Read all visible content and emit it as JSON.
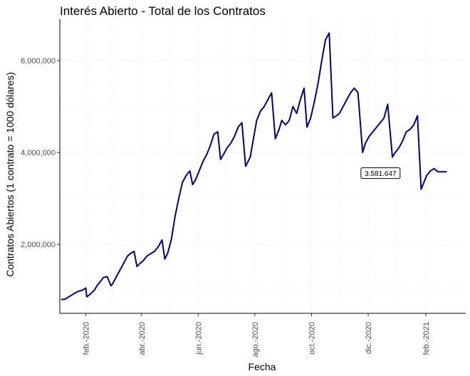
{
  "chart_data": {
    "type": "line",
    "title": "Interés Abierto - Total de los Contratos",
    "xlabel": "Fecha",
    "ylabel": "Contratos Abiertos (1 contrato = 1000 dólares)",
    "x_tick_labels": [
      "feb.-2020",
      "abr.-2020",
      "jun.-2020",
      "ago.-2020",
      "oct.-2020",
      "dic.-2020",
      "feb.-2021"
    ],
    "x_tick_dates": [
      "2020-02-01",
      "2020-04-01",
      "2020-06-01",
      "2020-08-01",
      "2020-10-01",
      "2020-12-01",
      "2021-02-01"
    ],
    "y_tick_labels": [
      "2,000,000",
      "4,000,000",
      "6,000,000"
    ],
    "y_ticks": [
      2000000,
      4000000,
      6000000
    ],
    "xlim": [
      "2020-01-04",
      "2021-03-16"
    ],
    "ylim": [
      500000,
      6900000
    ],
    "grid": "dotted",
    "line_color": "#000080",
    "series": [
      {
        "x": [
          "2020-01-06",
          "2020-01-10",
          "2020-01-13",
          "2020-01-17",
          "2020-01-21",
          "2020-01-24",
          "2020-01-28",
          "2020-02-01",
          "2020-02-02",
          "2020-02-06",
          "2020-02-10",
          "2020-02-13",
          "2020-02-17",
          "2020-02-20",
          "2020-02-24",
          "2020-02-28",
          "2020-03-01",
          "2020-03-05",
          "2020-03-09",
          "2020-03-13",
          "2020-03-17",
          "2020-03-20",
          "2020-03-24",
          "2020-03-27",
          "2020-03-30",
          "2020-04-03",
          "2020-04-07",
          "2020-04-11",
          "2020-04-15",
          "2020-04-19",
          "2020-04-23",
          "2020-04-26",
          "2020-04-29",
          "2020-05-03",
          "2020-05-07",
          "2020-05-11",
          "2020-05-15",
          "2020-05-19",
          "2020-05-23",
          "2020-05-26",
          "2020-05-29",
          "2020-06-02",
          "2020-06-06",
          "2020-06-10",
          "2020-06-14",
          "2020-06-18",
          "2020-06-22",
          "2020-06-25",
          "2020-06-28",
          "2020-07-02",
          "2020-07-06",
          "2020-07-10",
          "2020-07-14",
          "2020-07-18",
          "2020-07-22",
          "2020-07-27",
          "2020-07-30",
          "2020-08-03",
          "2020-08-07",
          "2020-08-11",
          "2020-08-15",
          "2020-08-19",
          "2020-08-23",
          "2020-08-27",
          "2020-08-30",
          "2020-09-03",
          "2020-09-07",
          "2020-09-11",
          "2020-09-15",
          "2020-09-19",
          "2020-09-23",
          "2020-09-26",
          "2020-09-30",
          "2020-10-04",
          "2020-10-08",
          "2020-10-12",
          "2020-10-16",
          "2020-10-20",
          "2020-10-24",
          "2020-10-28",
          "2020-10-31",
          "2020-11-04",
          "2020-11-08",
          "2020-11-12",
          "2020-11-16",
          "2020-11-20",
          "2020-11-25",
          "2020-11-28",
          "2020-12-02",
          "2020-12-06",
          "2020-12-10",
          "2020-12-14",
          "2020-12-18",
          "2020-12-22",
          "2020-12-27",
          "2020-12-30",
          "2021-01-03",
          "2021-01-07",
          "2021-01-11",
          "2021-01-15",
          "2021-01-19",
          "2021-01-23",
          "2021-01-27",
          "2021-01-29",
          "2021-02-02",
          "2021-02-06",
          "2021-02-10",
          "2021-02-14",
          "2021-02-19",
          "2021-02-23"
        ],
        "y": [
          800000,
          810000,
          850000,
          900000,
          950000,
          980000,
          1000000,
          1050000,
          860000,
          920000,
          1000000,
          1100000,
          1200000,
          1280000,
          1300000,
          1100000,
          1150000,
          1300000,
          1450000,
          1600000,
          1750000,
          1800000,
          1850000,
          1520000,
          1580000,
          1650000,
          1750000,
          1800000,
          1850000,
          1950000,
          2100000,
          1680000,
          1800000,
          2100000,
          2600000,
          3000000,
          3350000,
          3500000,
          3600000,
          3300000,
          3400000,
          3600000,
          3800000,
          3950000,
          4150000,
          4400000,
          4450000,
          3850000,
          3950000,
          4100000,
          4200000,
          4350000,
          4550000,
          4650000,
          3700000,
          3900000,
          4250000,
          4700000,
          4900000,
          5000000,
          5150000,
          5300000,
          4300000,
          4500000,
          4700000,
          4600000,
          4700000,
          5000000,
          4850000,
          5150000,
          5400000,
          4550000,
          4750000,
          5100000,
          5500000,
          6000000,
          6450000,
          6600000,
          4750000,
          4800000,
          4850000,
          5000000,
          5150000,
          5300000,
          5400000,
          5300000,
          4000000,
          4200000,
          4350000,
          4450000,
          4550000,
          4650000,
          4750000,
          5050000,
          3900000,
          4000000,
          4100000,
          4250000,
          4450000,
          4500000,
          4600000,
          4800000,
          3200000,
          3300000,
          3500000,
          3600000,
          3650000,
          3580000,
          3580000,
          3581647
        ]
      }
    ],
    "annotations": [
      {
        "x": "2020-12-02",
        "y": 3581647,
        "text": "3.581.647"
      }
    ]
  }
}
